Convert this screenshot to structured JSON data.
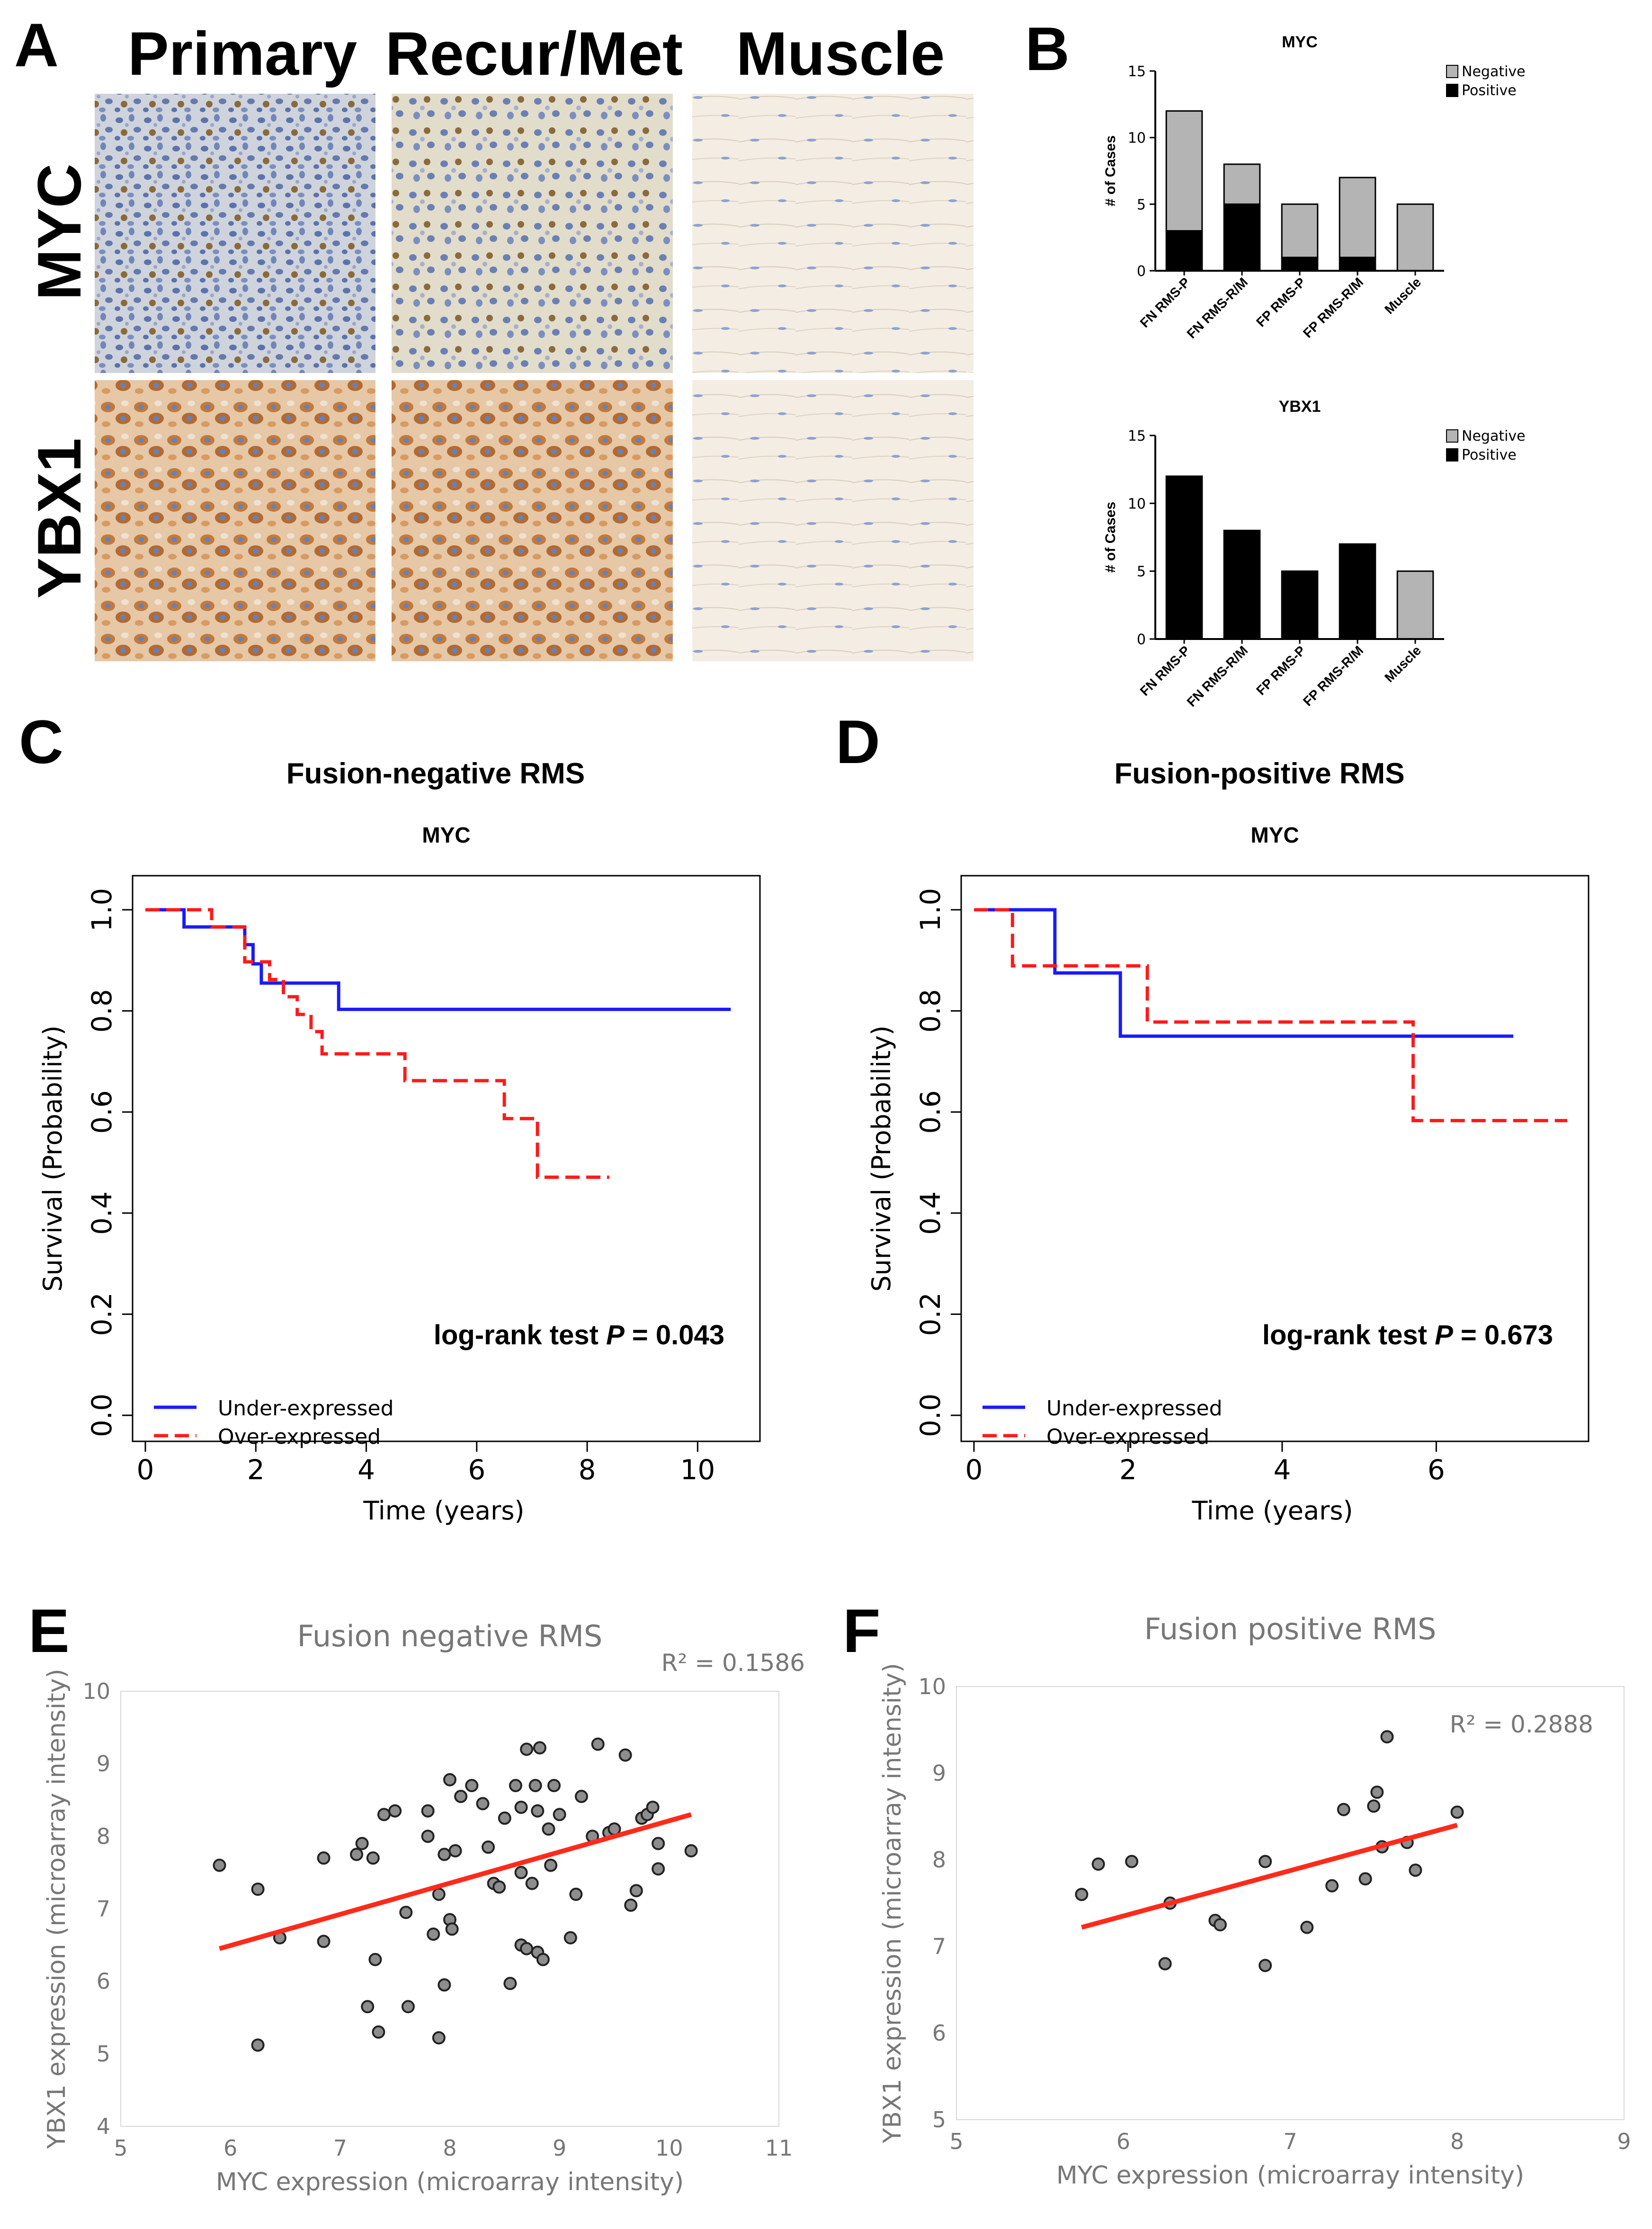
{
  "panels": {
    "a": {
      "label": "A",
      "columns": [
        "Primary",
        "Recur/Met",
        "Muscle"
      ],
      "rows": [
        "MYC",
        "YBX1"
      ]
    },
    "b": {
      "label": "B"
    },
    "c": {
      "label": "C",
      "heading": "Fusion-negative RMS"
    },
    "d": {
      "label": "D",
      "heading": "Fusion-positive RMS"
    },
    "e": {
      "label": "E"
    },
    "f": {
      "label": "F"
    }
  },
  "colors": {
    "negative_bar": "#b4b4b4",
    "positive_bar": "#000000",
    "under_line": "#1a1aff",
    "over_line": "#ff1a1a",
    "trend_line": "#ff2a1a",
    "stain_brown": "#b06a2c",
    "stain_blue": "#5a73b0",
    "muscle_bg": "#f1ebe0"
  },
  "chart_data": [
    {
      "id": "b-myc",
      "type": "bar",
      "stacked": true,
      "title": "MYC",
      "ylabel": "# of Cases",
      "xlabel": "",
      "ylim": [
        0,
        15
      ],
      "yticks": [
        0,
        5,
        10,
        15
      ],
      "categories": [
        "FN RMS-P",
        "FN RMS-R/M",
        "FP RMS-P",
        "FP RMS-R/M",
        "Muscle"
      ],
      "series": [
        {
          "name": "Positive",
          "values": [
            3,
            5,
            1,
            1,
            0
          ]
        },
        {
          "name": "Negative",
          "values": [
            9,
            3,
            4,
            6,
            5
          ]
        }
      ],
      "legend": [
        "Negative",
        "Positive"
      ],
      "legend_position": "top-right"
    },
    {
      "id": "b-ybx1",
      "type": "bar",
      "stacked": true,
      "title": "YBX1",
      "ylabel": "# of Cases",
      "xlabel": "",
      "ylim": [
        0,
        15
      ],
      "yticks": [
        0,
        5,
        10,
        15
      ],
      "categories": [
        "FN RMS-P",
        "FN RMS-R/M",
        "FP RMS-P",
        "FP RMS-R/M",
        "Muscle"
      ],
      "series": [
        {
          "name": "Positive",
          "values": [
            12,
            8,
            5,
            7,
            0
          ]
        },
        {
          "name": "Negative",
          "values": [
            0,
            0,
            0,
            0,
            5
          ]
        }
      ],
      "legend": [
        "Negative",
        "Positive"
      ],
      "legend_position": "top-right"
    },
    {
      "id": "c-km",
      "type": "line",
      "step": true,
      "title": "MYC",
      "xlabel": "Time (years)",
      "ylabel": "Survival (Probability)",
      "xlim": [
        0,
        11
      ],
      "ylim": [
        0,
        1
      ],
      "xticks": [
        0,
        2,
        4,
        6,
        8,
        10
      ],
      "yticks": [
        "0.0",
        "0.2",
        "0.4",
        "0.6",
        "0.8",
        "1.0"
      ],
      "annotation_prefix": "log-rank test ",
      "annotation_p": "P",
      "annotation_value": " = 0.043",
      "legend": [
        "Under-expressed",
        "Over-expressed"
      ],
      "legend_position": "bottom-left",
      "series": [
        {
          "name": "Under-expressed",
          "style": "solid",
          "steps": [
            [
              0,
              1.0
            ],
            [
              0.7,
              0.966
            ],
            [
              1.8,
              0.931
            ],
            [
              1.95,
              0.893
            ],
            [
              2.1,
              0.855
            ],
            [
              3.5,
              0.803
            ],
            [
              10.6,
              0.803
            ]
          ]
        },
        {
          "name": "Over-expressed",
          "style": "dashed",
          "steps": [
            [
              0,
              1.0
            ],
            [
              1.2,
              0.966
            ],
            [
              1.8,
              0.897
            ],
            [
              2.25,
              0.862
            ],
            [
              2.5,
              0.828
            ],
            [
              2.75,
              0.793
            ],
            [
              3.0,
              0.759
            ],
            [
              3.2,
              0.715
            ],
            [
              4.7,
              0.662
            ],
            [
              6.5,
              0.587
            ],
            [
              7.1,
              0.471
            ],
            [
              8.4,
              0.471
            ]
          ]
        }
      ]
    },
    {
      "id": "d-km",
      "type": "line",
      "step": true,
      "title": "MYC",
      "xlabel": "Time (years)",
      "ylabel": "Survival (Probability)",
      "xlim": [
        0,
        7.7
      ],
      "ylim": [
        0,
        1
      ],
      "xticks": [
        0,
        2,
        4,
        6
      ],
      "yticks": [
        "0.0",
        "0.2",
        "0.4",
        "0.6",
        "0.8",
        "1.0"
      ],
      "annotation_prefix": "log-rank test ",
      "annotation_p": "P",
      "annotation_value": " = 0.673",
      "legend": [
        "Under-expressed",
        "Over-expressed"
      ],
      "legend_position": "bottom-left",
      "series": [
        {
          "name": "Under-expressed",
          "style": "solid",
          "steps": [
            [
              0,
              1.0
            ],
            [
              1.05,
              0.875
            ],
            [
              1.9,
              0.75
            ],
            [
              7.0,
              0.75
            ]
          ]
        },
        {
          "name": "Over-expressed",
          "style": "dashed",
          "steps": [
            [
              0,
              1.0
            ],
            [
              0.5,
              0.889
            ],
            [
              2.25,
              0.778
            ],
            [
              5.7,
              0.583
            ],
            [
              7.7,
              0.583
            ]
          ]
        }
      ]
    },
    {
      "id": "e-scatter",
      "type": "scatter",
      "title": "Fusion negative RMS",
      "xlabel": "MYC expression (microarray intensity)",
      "ylabel": "YBX1 expression (microarray intensity)",
      "xlim": [
        5,
        11
      ],
      "ylim": [
        4,
        10
      ],
      "xticks": [
        5,
        6,
        7,
        8,
        9,
        10,
        11
      ],
      "yticks": [
        4,
        5,
        6,
        7,
        8,
        9,
        10
      ],
      "r2": "R² = 0.1586",
      "trend": [
        [
          5.9,
          6.45
        ],
        [
          10.2,
          8.3
        ]
      ],
      "points": [
        [
          5.9,
          7.6
        ],
        [
          6.25,
          7.27
        ],
        [
          6.25,
          5.12
        ],
        [
          6.45,
          6.6
        ],
        [
          6.85,
          6.55
        ],
        [
          6.85,
          7.7
        ],
        [
          7.15,
          7.75
        ],
        [
          7.2,
          7.9
        ],
        [
          7.25,
          5.65
        ],
        [
          7.3,
          7.7
        ],
        [
          7.32,
          6.3
        ],
        [
          7.35,
          5.3
        ],
        [
          7.4,
          8.3
        ],
        [
          7.5,
          8.35
        ],
        [
          7.6,
          6.95
        ],
        [
          7.62,
          5.65
        ],
        [
          7.8,
          8.35
        ],
        [
          7.8,
          8.0
        ],
        [
          7.85,
          6.65
        ],
        [
          7.9,
          5.22
        ],
        [
          7.9,
          7.2
        ],
        [
          7.95,
          7.75
        ],
        [
          7.95,
          5.95
        ],
        [
          8.0,
          6.85
        ],
        [
          8.0,
          8.78
        ],
        [
          8.02,
          6.72
        ],
        [
          8.05,
          7.8
        ],
        [
          8.1,
          8.55
        ],
        [
          8.2,
          8.7
        ],
        [
          8.3,
          8.45
        ],
        [
          8.35,
          7.85
        ],
        [
          8.4,
          7.35
        ],
        [
          8.45,
          7.3
        ],
        [
          8.5,
          8.25
        ],
        [
          8.55,
          5.97
        ],
        [
          8.6,
          8.7
        ],
        [
          8.65,
          6.5
        ],
        [
          8.65,
          8.4
        ],
        [
          8.65,
          7.5
        ],
        [
          8.7,
          6.45
        ],
        [
          8.75,
          7.35
        ],
        [
          8.8,
          6.4
        ],
        [
          8.82,
          9.22
        ],
        [
          8.7,
          9.2
        ],
        [
          8.78,
          8.7
        ],
        [
          8.8,
          8.35
        ],
        [
          8.85,
          6.3
        ],
        [
          8.9,
          8.1
        ],
        [
          8.92,
          7.6
        ],
        [
          8.95,
          8.7
        ],
        [
          9.0,
          8.3
        ],
        [
          9.1,
          6.6
        ],
        [
          9.15,
          7.2
        ],
        [
          9.2,
          8.55
        ],
        [
          9.3,
          8.0
        ],
        [
          9.35,
          9.27
        ],
        [
          9.45,
          8.05
        ],
        [
          9.5,
          8.1
        ],
        [
          9.6,
          9.12
        ],
        [
          9.65,
          7.05
        ],
        [
          9.7,
          7.25
        ],
        [
          9.75,
          8.25
        ],
        [
          9.8,
          8.3
        ],
        [
          9.85,
          8.4
        ],
        [
          9.9,
          7.9
        ],
        [
          9.9,
          7.55
        ],
        [
          10.2,
          7.8
        ]
      ]
    },
    {
      "id": "f-scatter",
      "type": "scatter",
      "title": "Fusion positive RMS",
      "xlabel": "MYC expression (microarray intensity)",
      "ylabel": "YBX1 expression (microarray intensity)",
      "xlim": [
        5,
        9
      ],
      "ylim": [
        5,
        10
      ],
      "xticks": [
        5,
        6,
        7,
        8,
        9
      ],
      "yticks": [
        5,
        6,
        7,
        8,
        9,
        10
      ],
      "r2": "R² = 0.2888",
      "trend": [
        [
          5.75,
          7.22
        ],
        [
          8.0,
          8.4
        ]
      ],
      "points": [
        [
          5.75,
          7.6
        ],
        [
          5.85,
          7.95
        ],
        [
          6.05,
          7.98
        ],
        [
          6.25,
          6.8
        ],
        [
          6.28,
          7.5
        ],
        [
          6.55,
          7.3
        ],
        [
          6.58,
          7.25
        ],
        [
          6.85,
          6.78
        ],
        [
          6.85,
          7.98
        ],
        [
          7.1,
          7.22
        ],
        [
          7.25,
          7.7
        ],
        [
          7.32,
          8.58
        ],
        [
          7.45,
          7.78
        ],
        [
          7.5,
          8.62
        ],
        [
          7.52,
          8.78
        ],
        [
          7.55,
          8.15
        ],
        [
          7.58,
          9.42
        ],
        [
          7.7,
          8.2
        ],
        [
          7.75,
          7.88
        ],
        [
          8.0,
          8.55
        ]
      ]
    }
  ]
}
